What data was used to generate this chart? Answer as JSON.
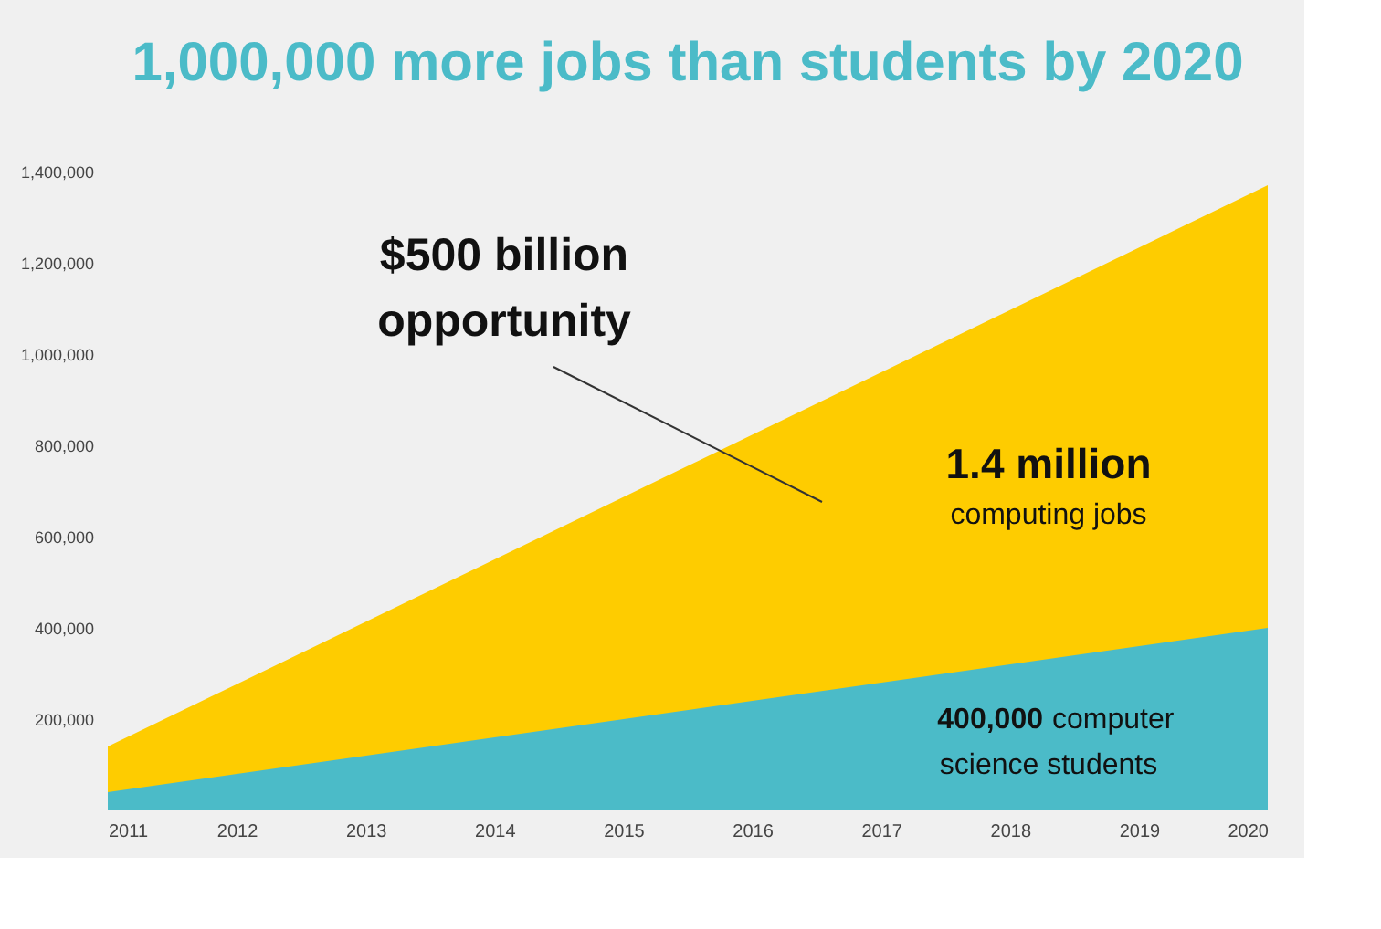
{
  "chart_data": {
    "type": "area",
    "title": "1,000,000 more jobs than students by 2020",
    "x": [
      2011,
      2020
    ],
    "series": [
      {
        "color": "#fecc00",
        "values": [
          140000,
          1370000
        ]
      },
      {
        "color": "#4bbbc8",
        "values": [
          40000,
          400000
        ]
      }
    ],
    "xlim": [
      2011,
      2020
    ],
    "xticks": [
      2011,
      2012,
      2013,
      2014,
      2015,
      2016,
      2017,
      2018,
      2019,
      2020
    ],
    "ylim": [
      0,
      1400000
    ],
    "yticks": [
      {
        "value": 200000,
        "label": "200,000"
      },
      {
        "value": 400000,
        "label": "400,000"
      },
      {
        "value": 600000,
        "label": "600,000"
      },
      {
        "value": 800000,
        "label": "800,000"
      },
      {
        "value": 1000000,
        "label": "1,000,000"
      },
      {
        "value": 1200000,
        "label": "1,200,000"
      },
      {
        "value": 1400000,
        "label": "1,400,000"
      }
    ],
    "annotations": [
      "$500 billion opportunity",
      "1.4 million computing jobs",
      "400,000 computer science students"
    ],
    "grid": false
  }
}
